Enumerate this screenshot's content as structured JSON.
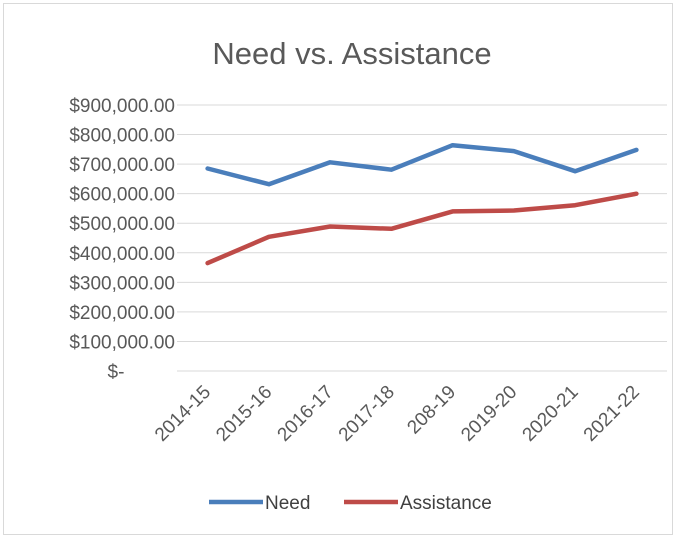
{
  "chart_data": {
    "type": "line",
    "title": "Need vs. Assistance",
    "categories": [
      "2014-15",
      "2015-16",
      "2016-17",
      "2017-18",
      "208-19",
      "2019-20",
      "2020-21",
      "2021-22"
    ],
    "series": [
      {
        "name": "Need",
        "color": "#4a7ebb",
        "values": [
          685000,
          632000,
          706000,
          681000,
          764000,
          744000,
          676000,
          748000
        ]
      },
      {
        "name": "Assistance",
        "color": "#be4b48",
        "values": [
          365000,
          454000,
          489000,
          481000,
          540000,
          543000,
          561000,
          600000
        ]
      }
    ],
    "ylim": [
      0,
      900000
    ],
    "y_ticks": [
      900000,
      800000,
      700000,
      600000,
      500000,
      400000,
      300000,
      200000,
      100000,
      0
    ],
    "y_tick_labels": [
      "$900,000.00",
      "$800,000.00",
      "$700,000.00",
      "$600,000.00",
      "$500,000.00",
      "$400,000.00",
      "$300,000.00",
      "$200,000.00",
      "$100,000.00",
      "$-"
    ],
    "grid": true,
    "legend_position": "bottom"
  }
}
